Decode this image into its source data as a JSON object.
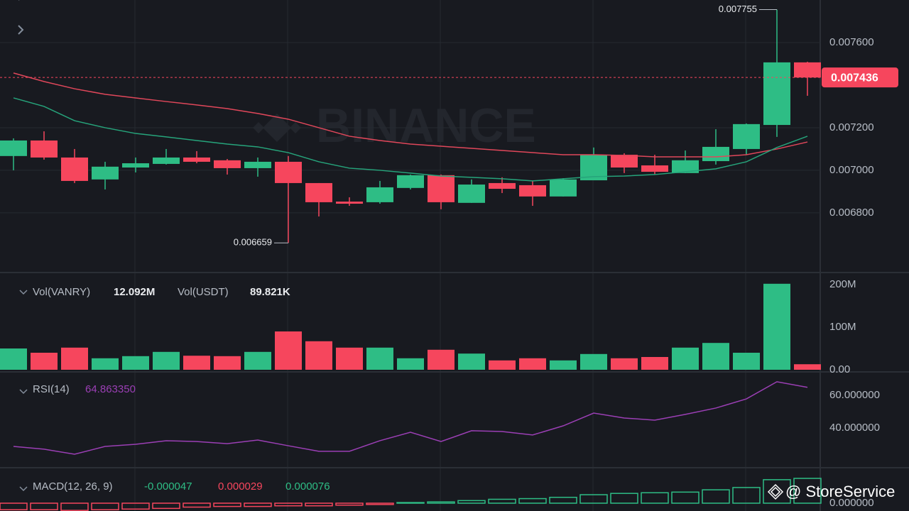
{
  "chart_data": [
    {
      "type": "candlestick",
      "watermark": "BINANCE",
      "up_color": "#2ebd85",
      "down_color": "#f6465d",
      "open": [
        0.007067,
        0.00714,
        0.00706,
        0.006957,
        0.007013,
        0.00703,
        0.00706,
        0.007047,
        0.00701,
        0.00704,
        0.00694,
        0.006853,
        0.00685,
        0.006917,
        0.006977,
        0.006847,
        0.00694,
        0.00693,
        0.006877,
        0.006953,
        0.007073,
        0.007023,
        0.006987,
        0.007043,
        0.0071,
        0.007213,
        0.007507
      ],
      "high": [
        0.00715,
        0.007183,
        0.0071,
        0.00704,
        0.00706,
        0.0071,
        0.00709,
        0.007053,
        0.00706,
        0.007067,
        0.00694,
        0.006873,
        0.00695,
        0.00698,
        0.00698,
        0.006957,
        0.006967,
        0.00695,
        0.006963,
        0.007107,
        0.00708,
        0.007073,
        0.007093,
        0.007193,
        0.00722,
        0.007755,
        0.00751
      ],
      "low": [
        0.007,
        0.00705,
        0.00694,
        0.00691,
        0.00699,
        0.007027,
        0.007033,
        0.00698,
        0.00697,
        0.006659,
        0.006783,
        0.006833,
        0.006843,
        0.00691,
        0.006817,
        0.006847,
        0.006893,
        0.006833,
        0.006877,
        0.006953,
        0.006987,
        0.00698,
        0.006987,
        0.007027,
        0.007073,
        0.007157,
        0.00735
      ],
      "close": [
        0.00714,
        0.00706,
        0.00695,
        0.007017,
        0.007033,
        0.00706,
        0.00704,
        0.00701,
        0.00704,
        0.00694,
        0.00685,
        0.006843,
        0.00692,
        0.006977,
        0.00685,
        0.006933,
        0.006913,
        0.006877,
        0.006957,
        0.007073,
        0.007013,
        0.006993,
        0.007047,
        0.00711,
        0.007217,
        0.007507,
        0.007436
      ],
      "ma_lines": [
        {
          "color": "#e0475a",
          "values": [
            0.007457,
            0.007417,
            0.007383,
            0.007357,
            0.00734,
            0.007323,
            0.007307,
            0.00729,
            0.007267,
            0.00724,
            0.0072,
            0.00716,
            0.00714,
            0.007123,
            0.007113,
            0.007103,
            0.007093,
            0.007083,
            0.007073,
            0.007073,
            0.00707,
            0.007063,
            0.007063,
            0.007063,
            0.007073,
            0.0071,
            0.007133
          ]
        },
        {
          "color": "#26a47b",
          "values": [
            0.00734,
            0.0073,
            0.007233,
            0.0072,
            0.007173,
            0.007157,
            0.00714,
            0.007123,
            0.00711,
            0.007083,
            0.00704,
            0.00701,
            0.007,
            0.006987,
            0.006973,
            0.006967,
            0.00696,
            0.00695,
            0.00696,
            0.00697,
            0.006973,
            0.00698,
            0.006993,
            0.007007,
            0.00704,
            0.007107,
            0.00716
          ]
        }
      ],
      "ylim": [
        0.006523,
        0.0078
      ],
      "yticks": [
        {
          "value": 0.0068,
          "label": "0.006800"
        },
        {
          "value": 0.007,
          "label": "0.007000"
        },
        {
          "value": 0.0072,
          "label": "0.007200"
        },
        {
          "value": 0.0076,
          "label": "0.007600"
        }
      ],
      "grid": true
    },
    {
      "type": "bar",
      "header": [
        {
          "label": "Vol(VANRY)",
          "value": "12.092M"
        },
        {
          "label": "Vol(USDT)",
          "value": "89.821K"
        }
      ],
      "values": [
        50,
        40,
        52,
        27,
        32,
        42,
        33,
        32,
        42,
        90,
        67,
        52,
        52,
        27,
        47,
        38,
        22,
        27,
        22,
        37,
        27,
        30,
        52,
        63,
        40,
        202,
        13
      ],
      "ylim": [
        0,
        226.7
      ],
      "yticks": [
        {
          "value": 0,
          "label": "0.00"
        },
        {
          "value": 100,
          "label": "100M"
        },
        {
          "value": 200,
          "label": "200M"
        }
      ]
    },
    {
      "type": "line",
      "title": "RSI(14)",
      "value_label": "64.863350",
      "color": "#9b3fb5",
      "values": [
        28.7,
        27.0,
        23.9,
        28.7,
        30.0,
        32.2,
        31.7,
        30.4,
        32.6,
        29.1,
        25.7,
        25.7,
        32.2,
        37.4,
        31.7,
        38.3,
        37.8,
        35.7,
        41.3,
        49.1,
        46.1,
        44.8,
        48.3,
        52.2,
        57.8,
        68.3,
        64.9
      ],
      "ylim": [
        16.09,
        73.04
      ],
      "yticks": [
        {
          "value": 40,
          "label": "40.000000"
        },
        {
          "value": 60,
          "label": "60.000000"
        }
      ]
    },
    {
      "type": "histogram-bar",
      "title": "MACD(12, 26, 9)",
      "header": [
        {
          "value": "-0.000047",
          "color": "#2ebd85"
        },
        {
          "value": "0.000029",
          "color": "#f6465d"
        },
        {
          "value": "0.000076",
          "color": "#2ebd85"
        }
      ],
      "values": [
        -2e-05,
        -2e-05,
        -2.2e-05,
        -2e-05,
        -1.8e-05,
        -1.6e-05,
        -1.2e-05,
        -1e-05,
        -1e-05,
        -8e-06,
        -8e-06,
        -6e-06,
        -4e-06,
        2e-06,
        4e-06,
        8e-06,
        1.2e-05,
        1.4e-05,
        1.8e-05,
        2.6e-05,
        3e-05,
        3.2e-05,
        3.4e-05,
        4.1e-05,
        4.8e-05,
        7.2e-05,
        7.6e-05
      ],
      "ylim": [
        -2.39e-05,
        0.0001065
      ],
      "yticks": [
        {
          "value": 0,
          "label": "0.000000"
        }
      ]
    }
  ],
  "watermark_corner": "@ StoreService"
}
